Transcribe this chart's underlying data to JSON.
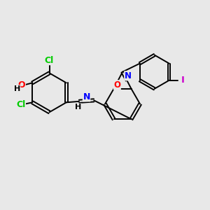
{
  "background_color": "#e8e8e8",
  "bond_color": "#000000",
  "atom_colors": {
    "Cl": "#00cc00",
    "O_red": "#ff0000",
    "N": "#0000ff",
    "I": "#cc00cc",
    "H": "#000000"
  },
  "bond_width": 1.4,
  "figsize": [
    3.0,
    3.0
  ],
  "dpi": 100,
  "xlim": [
    0,
    10
  ],
  "ylim": [
    0,
    10
  ]
}
